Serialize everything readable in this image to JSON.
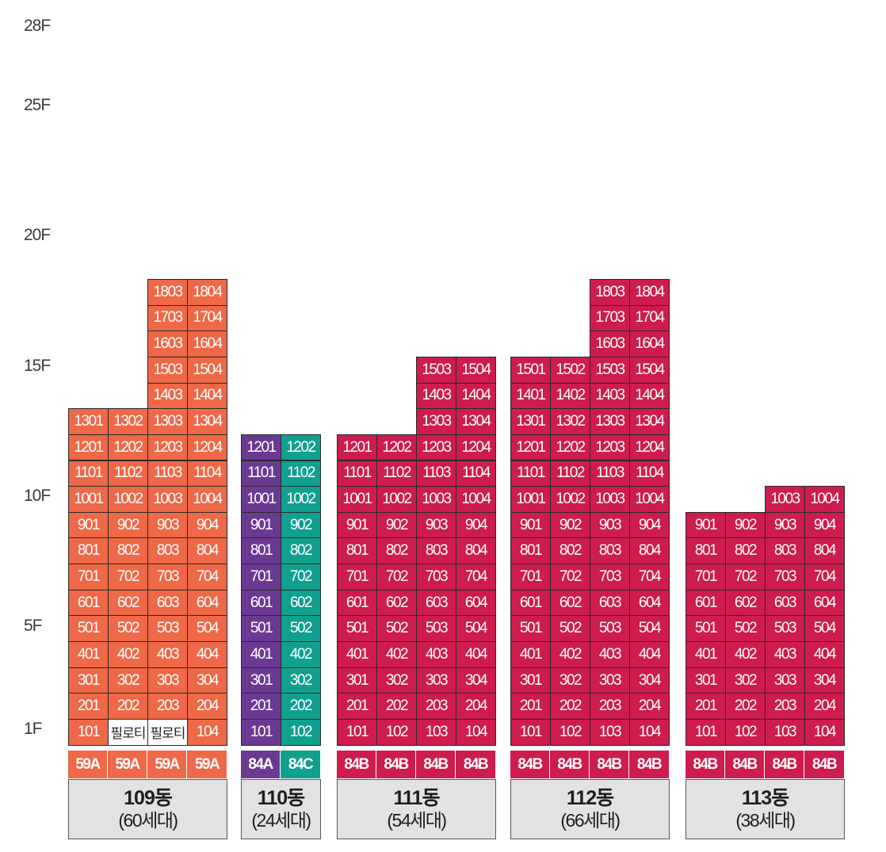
{
  "floor_labels": [
    "28F",
    "25F",
    "20F",
    "15F",
    "10F",
    "5F",
    "1F"
  ],
  "colors": {
    "type_59A": "#ef6847",
    "type_84A": "#6a3a93",
    "type_84C": "#10a08e",
    "type_84B": "#cd1c4d",
    "piloti": "#ffffff",
    "label_bg": "#e2e2e2"
  },
  "piloti_text": "필로티",
  "buildings": [
    {
      "name": "109동",
      "households": "(60세대)",
      "types": [
        "59A",
        "59A",
        "59A",
        "59A"
      ],
      "columns": [
        {
          "unit": 1,
          "floors": [
            1,
            13
          ],
          "color": "type_59A",
          "piloti_floors": []
        },
        {
          "unit": 2,
          "floors": [
            1,
            13
          ],
          "color": "type_59A",
          "piloti_floors": [
            1
          ]
        },
        {
          "unit": 3,
          "floors": [
            1,
            18
          ],
          "color": "type_59A",
          "piloti_floors": [
            1
          ]
        },
        {
          "unit": 4,
          "floors": [
            1,
            18
          ],
          "color": "type_59A",
          "piloti_floors": []
        }
      ]
    },
    {
      "name": "110동",
      "households": "(24세대)",
      "types": [
        "84A",
        "84C"
      ],
      "columns": [
        {
          "unit": 1,
          "floors": [
            1,
            12
          ],
          "color": "type_84A",
          "piloti_floors": []
        },
        {
          "unit": 2,
          "floors": [
            1,
            12
          ],
          "color": "type_84C",
          "piloti_floors": []
        }
      ]
    },
    {
      "name": "111동",
      "households": "(54세대)",
      "types": [
        "84B",
        "84B",
        "84B",
        "84B"
      ],
      "columns": [
        {
          "unit": 1,
          "floors": [
            1,
            12
          ],
          "color": "type_84B",
          "piloti_floors": []
        },
        {
          "unit": 2,
          "floors": [
            1,
            12
          ],
          "color": "type_84B",
          "piloti_floors": []
        },
        {
          "unit": 3,
          "floors": [
            1,
            15
          ],
          "color": "type_84B",
          "piloti_floors": []
        },
        {
          "unit": 4,
          "floors": [
            1,
            15
          ],
          "color": "type_84B",
          "piloti_floors": []
        }
      ]
    },
    {
      "name": "112동",
      "households": "(66세대)",
      "types": [
        "84B",
        "84B",
        "84B",
        "84B"
      ],
      "columns": [
        {
          "unit": 1,
          "floors": [
            1,
            15
          ],
          "color": "type_84B",
          "piloti_floors": []
        },
        {
          "unit": 2,
          "floors": [
            1,
            15
          ],
          "color": "type_84B",
          "piloti_floors": []
        },
        {
          "unit": 3,
          "floors": [
            1,
            18
          ],
          "color": "type_84B",
          "piloti_floors": []
        },
        {
          "unit": 4,
          "floors": [
            1,
            18
          ],
          "color": "type_84B",
          "piloti_floors": []
        }
      ]
    },
    {
      "name": "113동",
      "households": "(38세대)",
      "types": [
        "84B",
        "84B",
        "84B",
        "84B"
      ],
      "columns": [
        {
          "unit": 1,
          "floors": [
            1,
            9
          ],
          "color": "type_84B",
          "piloti_floors": []
        },
        {
          "unit": 2,
          "floors": [
            1,
            9
          ],
          "color": "type_84B",
          "piloti_floors": []
        },
        {
          "unit": 3,
          "floors": [
            1,
            10
          ],
          "color": "type_84B",
          "piloti_floors": []
        },
        {
          "unit": 4,
          "floors": [
            1,
            10
          ],
          "color": "type_84B",
          "piloti_floors": []
        }
      ]
    }
  ]
}
